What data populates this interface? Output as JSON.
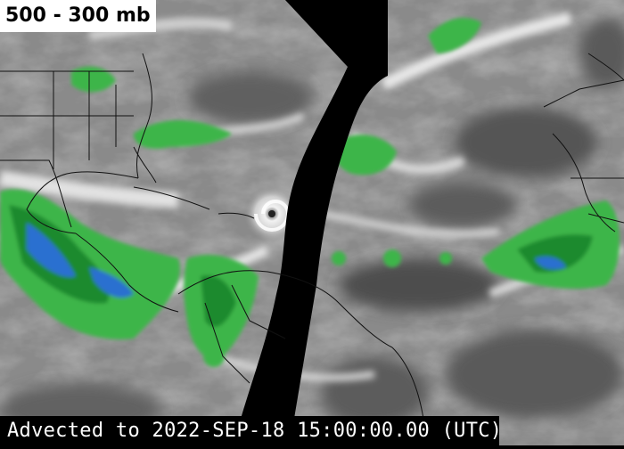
{
  "map": {
    "title": "500 - 300 mb",
    "footer": "Advected to 2022-SEP-18 15:00:00.00 (UTC)",
    "colors": {
      "background_gray": "#8a8a8a",
      "dry_dark": "#3c3c3c",
      "moist_white": "#e8e8e8",
      "green_light": "#4fc94f",
      "green_dark": "#1e8a2e",
      "blue": "#2a6fd0",
      "no_data": "#000000",
      "borders": "#000000"
    },
    "features": [
      "hurricane-vortex",
      "satellite-no-data-gap",
      "coastlines",
      "country-borders",
      "state-borders"
    ]
  }
}
